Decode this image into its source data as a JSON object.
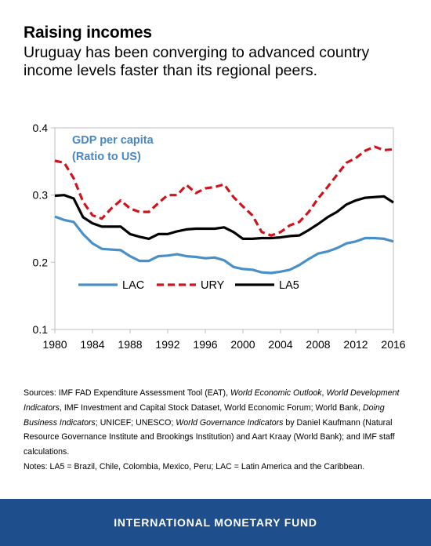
{
  "header": {
    "title": "Raising incomes",
    "subtitle": "Uruguay has been converging to advanced country income levels faster than its regional peers."
  },
  "sources": {
    "line1_a": "Sources: IMF FAD Expenditure Assessment Tool (EAT), ",
    "line1_b": "World Economic Outlook",
    "line1_c": ", ",
    "line1_d": "World Development Indicators",
    "line1_e": ", IMF Investment and Capital Stock Dataset, World Economic Forum; World Bank, ",
    "line1_f": "Doing Business Indicators",
    "line1_g": "; UNICEF; UNESCO; ",
    "line1_h": "World Governance Indicators",
    "line1_i": " by Daniel Kaufmann (Natural Resource Governance Institute and Brookings Institution) and Aart Kraay (World Bank); and IMF staff calculations.",
    "notes": "Notes: LA5 = Brazil, Chile, Colombia, Mexico, Peru; LAC = Latin America and the Caribbean."
  },
  "footer": {
    "org": "INTERNATIONAL MONETARY FUND"
  },
  "colors": {
    "lac": "#4a90c8",
    "ury": "#d0141e",
    "la5": "#000000",
    "footer_bg": "#1f4e8c",
    "inner_title": "#4a86c0"
  },
  "chart_data": {
    "type": "line",
    "title": "GDP per capita",
    "title_line2": "(Ratio to US)",
    "xlim": [
      1980,
      2016
    ],
    "ylim": [
      0.1,
      0.4
    ],
    "xticks": [
      "1980",
      "1984",
      "1988",
      "1992",
      "1996",
      "2000",
      "2004",
      "2008",
      "2012",
      "2016"
    ],
    "yticks": [
      "0.1",
      "0.2",
      "0.3",
      "0.4"
    ],
    "grid": false,
    "legend_position": "lower-center",
    "x": [
      1980,
      1981,
      1982,
      1983,
      1984,
      1985,
      1986,
      1987,
      1988,
      1989,
      1990,
      1991,
      1992,
      1993,
      1994,
      1995,
      1996,
      1997,
      1998,
      1999,
      2000,
      2001,
      2002,
      2003,
      2004,
      2005,
      2006,
      2007,
      2008,
      2009,
      2010,
      2011,
      2012,
      2013,
      2014,
      2015,
      2016
    ],
    "series": [
      {
        "name": "LAC",
        "style": "solid",
        "color": "#4a90c8",
        "values": [
          0.268,
          0.263,
          0.26,
          0.242,
          0.228,
          0.22,
          0.219,
          0.218,
          0.209,
          0.202,
          0.202,
          0.209,
          0.21,
          0.212,
          0.209,
          0.208,
          0.206,
          0.207,
          0.203,
          0.193,
          0.19,
          0.189,
          0.185,
          0.184,
          0.186,
          0.189,
          0.196,
          0.205,
          0.213,
          0.216,
          0.221,
          0.228,
          0.231,
          0.236,
          0.236,
          0.235,
          0.231
        ]
      },
      {
        "name": "URY",
        "style": "dashed",
        "color": "#d0141e",
        "values": [
          0.351,
          0.348,
          0.325,
          0.29,
          0.27,
          0.265,
          0.28,
          0.292,
          0.28,
          0.275,
          0.275,
          0.288,
          0.3,
          0.3,
          0.315,
          0.303,
          0.31,
          0.312,
          0.316,
          0.297,
          0.283,
          0.27,
          0.245,
          0.24,
          0.245,
          0.255,
          0.26,
          0.275,
          0.295,
          0.312,
          0.33,
          0.348,
          0.355,
          0.366,
          0.372,
          0.367,
          0.368
        ]
      },
      {
        "name": "LA5",
        "style": "solid",
        "color": "#000000",
        "values": [
          0.299,
          0.3,
          0.295,
          0.267,
          0.258,
          0.253,
          0.253,
          0.253,
          0.242,
          0.238,
          0.235,
          0.242,
          0.242,
          0.246,
          0.249,
          0.25,
          0.25,
          0.25,
          0.252,
          0.245,
          0.235,
          0.235,
          0.236,
          0.236,
          0.237,
          0.239,
          0.24,
          0.248,
          0.257,
          0.267,
          0.275,
          0.286,
          0.292,
          0.296,
          0.297,
          0.298,
          0.289
        ]
      }
    ]
  }
}
